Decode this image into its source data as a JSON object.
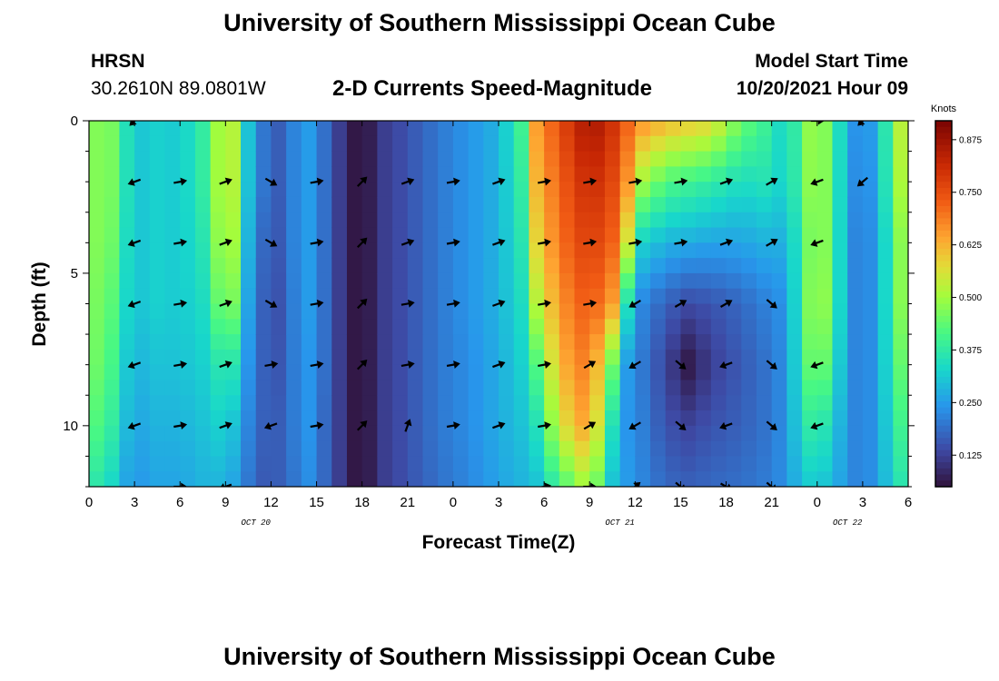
{
  "header": {
    "title": "University of Southern Mississippi Ocean Cube",
    "station": "HRSN",
    "coordinates": "30.2610N  89.0801W",
    "subtitle": "2-D Currents Speed-Magnitude",
    "model_start_label": "Model Start Time",
    "model_start_value": "10/20/2021 Hour 09"
  },
  "footer": {
    "title": "University of Southern Mississippi Ocean Cube"
  },
  "chart_data": {
    "type": "heatmap",
    "title": "2-D Currents Speed-Magnitude",
    "xlabel": "Forecast Time(Z)",
    "ylabel": "Depth (ft)",
    "x_tick_labels": [
      "0",
      "3",
      "6",
      "9",
      "12",
      "15",
      "18",
      "21",
      "0",
      "3",
      "6",
      "9",
      "12",
      "15",
      "18",
      "21",
      "0",
      "3",
      "6"
    ],
    "x_tick_hours": [
      0,
      3,
      6,
      9,
      12,
      15,
      18,
      21,
      24,
      27,
      30,
      33,
      36,
      39,
      42,
      45,
      48,
      51,
      54
    ],
    "x_range_hours": [
      0,
      54
    ],
    "date_labels": [
      {
        "text": "OCT 20",
        "hour": 11
      },
      {
        "text": "OCT 21",
        "hour": 35
      },
      {
        "text": "OCT 22",
        "hour": 50
      }
    ],
    "y_ticks": [
      "0",
      "5",
      "10"
    ],
    "y_tick_values": [
      0,
      5,
      10
    ],
    "y_range": [
      0,
      12
    ],
    "colorbar": {
      "label": "Knots",
      "ticks": [
        "0.875",
        "0.750",
        "0.625",
        "0.500",
        "0.375",
        "0.250",
        "0.125"
      ],
      "tick_values": [
        0.875,
        0.75,
        0.625,
        0.5,
        0.375,
        0.25,
        0.125
      ],
      "range": [
        0.05,
        0.92
      ]
    },
    "speed_control_points": [
      {
        "hour": 0,
        "depths": [
          0,
          2,
          4,
          6,
          8,
          10,
          12
        ],
        "speeds": [
          0.42,
          0.42,
          0.42,
          0.42,
          0.42,
          0.4,
          0.35
        ]
      },
      {
        "hour": 1,
        "depths": [
          0,
          2,
          4,
          6,
          8,
          10,
          12
        ],
        "speeds": [
          0.52,
          0.52,
          0.52,
          0.5,
          0.48,
          0.44,
          0.38
        ]
      },
      {
        "hour": 2,
        "depths": [
          0,
          2,
          4,
          6,
          8,
          10,
          12
        ],
        "speeds": [
          0.4,
          0.4,
          0.38,
          0.36,
          0.34,
          0.32,
          0.28
        ]
      },
      {
        "hour": 3,
        "depths": [
          0,
          2,
          4,
          6,
          8,
          10,
          12
        ],
        "speeds": [
          0.3,
          0.3,
          0.3,
          0.3,
          0.28,
          0.26,
          0.24
        ]
      },
      {
        "hour": 4.5,
        "depths": [
          0,
          2,
          4,
          6,
          8,
          10,
          12
        ],
        "speeds": [
          0.32,
          0.32,
          0.32,
          0.32,
          0.3,
          0.28,
          0.26
        ]
      },
      {
        "hour": 6,
        "depths": [
          0,
          2,
          4,
          6,
          8,
          10,
          12
        ],
        "speeds": [
          0.31,
          0.31,
          0.31,
          0.31,
          0.3,
          0.28,
          0.26
        ]
      },
      {
        "hour": 7.5,
        "depths": [
          0,
          2,
          4,
          6,
          8,
          10,
          12
        ],
        "speeds": [
          0.38,
          0.38,
          0.36,
          0.34,
          0.32,
          0.3,
          0.28
        ]
      },
      {
        "hour": 8.5,
        "depths": [
          0,
          2,
          4,
          6,
          8,
          10,
          12
        ],
        "speeds": [
          0.5,
          0.5,
          0.48,
          0.44,
          0.36,
          0.32,
          0.28
        ]
      },
      {
        "hour": 9.5,
        "depths": [
          0,
          2,
          4,
          6,
          8,
          10,
          12
        ],
        "speeds": [
          0.52,
          0.52,
          0.5,
          0.46,
          0.36,
          0.3,
          0.26
        ]
      },
      {
        "hour": 10.5,
        "depths": [
          0,
          2,
          4,
          6,
          8,
          10,
          12
        ],
        "speeds": [
          0.3,
          0.3,
          0.28,
          0.26,
          0.24,
          0.22,
          0.2
        ]
      },
      {
        "hour": 11.5,
        "depths": [
          0,
          2,
          4,
          6,
          8,
          10,
          12
        ],
        "speeds": [
          0.2,
          0.2,
          0.18,
          0.17,
          0.17,
          0.17,
          0.16
        ]
      },
      {
        "hour": 12,
        "depths": [
          0,
          2,
          4,
          6,
          8,
          10,
          12
        ],
        "speeds": [
          0.13,
          0.13,
          0.12,
          0.11,
          0.12,
          0.14,
          0.15
        ]
      },
      {
        "hour": 13,
        "depths": [
          0,
          2,
          4,
          6,
          8,
          10,
          12
        ],
        "speeds": [
          0.2,
          0.2,
          0.2,
          0.19,
          0.19,
          0.19,
          0.18
        ]
      },
      {
        "hour": 14.5,
        "depths": [
          0,
          2,
          4,
          6,
          8,
          10,
          12
        ],
        "speeds": [
          0.25,
          0.25,
          0.25,
          0.25,
          0.24,
          0.24,
          0.23
        ]
      },
      {
        "hour": 15.5,
        "depths": [
          0,
          2,
          4,
          6,
          8,
          10,
          12
        ],
        "speeds": [
          0.19,
          0.19,
          0.19,
          0.19,
          0.19,
          0.18,
          0.18
        ]
      },
      {
        "hour": 16.5,
        "depths": [
          0,
          2,
          4,
          6,
          8,
          10,
          12
        ],
        "speeds": [
          0.12,
          0.12,
          0.12,
          0.12,
          0.12,
          0.12,
          0.12
        ]
      },
      {
        "hour": 17.5,
        "depths": [
          0,
          2,
          4,
          6,
          8,
          10,
          12
        ],
        "speeds": [
          0.06,
          0.06,
          0.06,
          0.06,
          0.06,
          0.06,
          0.06
        ]
      },
      {
        "hour": 18.5,
        "depths": [
          0,
          2,
          4,
          6,
          8,
          10,
          12
        ],
        "speeds": [
          0.07,
          0.07,
          0.07,
          0.07,
          0.07,
          0.07,
          0.07
        ]
      },
      {
        "hour": 19.5,
        "depths": [
          0,
          2,
          4,
          6,
          8,
          10,
          12
        ],
        "speeds": [
          0.12,
          0.12,
          0.12,
          0.12,
          0.12,
          0.12,
          0.12
        ]
      },
      {
        "hour": 21,
        "depths": [
          0,
          2,
          4,
          6,
          8,
          10,
          12
        ],
        "speeds": [
          0.15,
          0.15,
          0.15,
          0.15,
          0.15,
          0.15,
          0.15
        ]
      },
      {
        "hour": 23,
        "depths": [
          0,
          2,
          4,
          6,
          8,
          10,
          12
        ],
        "speeds": [
          0.2,
          0.2,
          0.2,
          0.2,
          0.2,
          0.2,
          0.19
        ]
      },
      {
        "hour": 25,
        "depths": [
          0,
          2,
          4,
          6,
          8,
          10,
          12
        ],
        "speeds": [
          0.24,
          0.24,
          0.24,
          0.24,
          0.23,
          0.23,
          0.22
        ]
      },
      {
        "hour": 27,
        "depths": [
          0,
          2,
          4,
          6,
          8,
          10,
          12
        ],
        "speeds": [
          0.28,
          0.28,
          0.28,
          0.28,
          0.27,
          0.27,
          0.26
        ]
      },
      {
        "hour": 28.5,
        "depths": [
          0,
          2,
          4,
          6,
          8,
          10,
          12
        ],
        "speeds": [
          0.4,
          0.38,
          0.36,
          0.34,
          0.32,
          0.3,
          0.28
        ]
      },
      {
        "hour": 29.5,
        "depths": [
          0,
          2,
          4,
          6,
          8,
          10,
          12
        ],
        "speeds": [
          0.65,
          0.62,
          0.58,
          0.52,
          0.42,
          0.35,
          0.3
        ]
      },
      {
        "hour": 31,
        "depths": [
          0,
          2,
          4,
          6,
          8,
          10,
          12
        ],
        "speeds": [
          0.75,
          0.72,
          0.7,
          0.66,
          0.62,
          0.55,
          0.4
        ]
      },
      {
        "hour": 33,
        "depths": [
          0,
          2,
          4,
          6,
          8,
          10,
          12
        ],
        "speeds": [
          0.87,
          0.82,
          0.78,
          0.74,
          0.7,
          0.66,
          0.52
        ]
      },
      {
        "hour": 34.5,
        "depths": [
          0,
          2,
          4,
          6,
          8,
          10,
          12
        ],
        "speeds": [
          0.8,
          0.76,
          0.72,
          0.65,
          0.45,
          0.35,
          0.3
        ]
      },
      {
        "hour": 35.5,
        "depths": [
          0,
          2,
          4,
          6,
          8,
          10,
          12
        ],
        "speeds": [
          0.72,
          0.66,
          0.55,
          0.35,
          0.25,
          0.24,
          0.25
        ]
      },
      {
        "hour": 36.5,
        "depths": [
          0,
          2,
          4,
          6,
          8,
          10,
          12
        ],
        "speeds": [
          0.66,
          0.5,
          0.32,
          0.22,
          0.2,
          0.21,
          0.22
        ]
      },
      {
        "hour": 38,
        "depths": [
          0,
          2,
          4,
          6,
          8,
          10,
          12
        ],
        "speeds": [
          0.62,
          0.42,
          0.28,
          0.17,
          0.13,
          0.15,
          0.18
        ]
      },
      {
        "hour": 39.5,
        "depths": [
          0,
          2,
          4,
          6,
          8,
          10,
          12
        ],
        "speeds": [
          0.6,
          0.4,
          0.27,
          0.14,
          0.06,
          0.13,
          0.17
        ]
      },
      {
        "hour": 41,
        "depths": [
          0,
          2,
          4,
          6,
          8,
          10,
          12
        ],
        "speeds": [
          0.58,
          0.38,
          0.26,
          0.15,
          0.12,
          0.15,
          0.18
        ]
      },
      {
        "hour": 43,
        "depths": [
          0,
          2,
          4,
          6,
          8,
          10,
          12
        ],
        "speeds": [
          0.45,
          0.34,
          0.26,
          0.18,
          0.16,
          0.17,
          0.19
        ]
      },
      {
        "hour": 45,
        "depths": [
          0,
          2,
          4,
          6,
          8,
          10,
          12
        ],
        "speeds": [
          0.38,
          0.36,
          0.28,
          0.22,
          0.2,
          0.2,
          0.21
        ]
      },
      {
        "hour": 46,
        "depths": [
          0,
          2,
          4,
          6,
          8,
          10,
          12
        ],
        "speeds": [
          0.3,
          0.3,
          0.27,
          0.24,
          0.24,
          0.24,
          0.24
        ]
      },
      {
        "hour": 47,
        "depths": [
          0,
          2,
          4,
          6,
          8,
          10,
          12
        ],
        "speeds": [
          0.45,
          0.44,
          0.4,
          0.4,
          0.38,
          0.35,
          0.3
        ]
      },
      {
        "hour": 48,
        "depths": [
          0,
          2,
          4,
          6,
          8,
          10,
          12
        ],
        "speeds": [
          0.52,
          0.52,
          0.52,
          0.54,
          0.5,
          0.4,
          0.32
        ]
      },
      {
        "hour": 49,
        "depths": [
          0,
          2,
          4,
          6,
          8,
          10,
          12
        ],
        "speeds": [
          0.42,
          0.42,
          0.42,
          0.42,
          0.38,
          0.32,
          0.28
        ]
      },
      {
        "hour": 50,
        "depths": [
          0,
          2,
          4,
          6,
          8,
          10,
          12
        ],
        "speeds": [
          0.26,
          0.25,
          0.24,
          0.24,
          0.24,
          0.24,
          0.24
        ]
      },
      {
        "hour": 51,
        "depths": [
          0,
          2,
          4,
          6,
          8,
          10,
          12
        ],
        "speeds": [
          0.22,
          0.21,
          0.2,
          0.2,
          0.2,
          0.2,
          0.2
        ]
      },
      {
        "hour": 52,
        "depths": [
          0,
          2,
          4,
          6,
          8,
          10,
          12
        ],
        "speeds": [
          0.28,
          0.27,
          0.26,
          0.26,
          0.26,
          0.26,
          0.26
        ]
      },
      {
        "hour": 53,
        "depths": [
          0,
          2,
          4,
          6,
          8,
          10,
          12
        ],
        "speeds": [
          0.45,
          0.44,
          0.4,
          0.4,
          0.38,
          0.35,
          0.32
        ]
      },
      {
        "hour": 54,
        "depths": [
          0,
          2,
          4,
          6,
          8,
          10,
          12
        ],
        "speeds": [
          0.6,
          0.58,
          0.55,
          0.55,
          0.5,
          0.45,
          0.4
        ]
      }
    ],
    "vector_hours": [
      3,
      6,
      9,
      12,
      15,
      18,
      21,
      24,
      27,
      30,
      33,
      36,
      39,
      42,
      45,
      48,
      51
    ],
    "vector_depths": [
      0,
      2,
      4,
      6,
      8,
      10,
      12
    ],
    "vector_directions_deg": [
      [
        225,
        180,
        0,
        0,
        0,
        0,
        0,
        0,
        0,
        0,
        0,
        0,
        0,
        0,
        0,
        0,
        225
      ],
      [
        200,
        10,
        20,
        330,
        10,
        45,
        20,
        10,
        20,
        10,
        10,
        10,
        10,
        20,
        30,
        200,
        220
      ],
      [
        200,
        10,
        20,
        330,
        10,
        45,
        20,
        10,
        20,
        10,
        10,
        10,
        10,
        20,
        30,
        200,
        220
      ],
      [
        200,
        10,
        20,
        330,
        10,
        45,
        10,
        10,
        20,
        10,
        10,
        210,
        30,
        30,
        320,
        200,
        220
      ],
      [
        200,
        10,
        20,
        10,
        10,
        45,
        10,
        10,
        20,
        10,
        30,
        210,
        320,
        200,
        320,
        200,
        220
      ],
      [
        200,
        10,
        20,
        200,
        10,
        45,
        70,
        10,
        20,
        10,
        30,
        210,
        320,
        200,
        320,
        200,
        220
      ],
      [
        0,
        0,
        200,
        0,
        0,
        0,
        0,
        0,
        0,
        10,
        0,
        40,
        320,
        330,
        320,
        0,
        0
      ]
    ],
    "vector_present": [
      [
        1,
        0,
        0,
        0,
        0,
        0,
        0,
        0,
        0,
        0,
        0,
        0,
        0,
        0,
        0,
        1,
        1
      ],
      [
        1,
        1,
        1,
        1,
        1,
        1,
        1,
        1,
        1,
        1,
        1,
        1,
        1,
        1,
        1,
        1,
        1
      ],
      [
        1,
        1,
        1,
        1,
        1,
        1,
        1,
        1,
        1,
        1,
        1,
        1,
        1,
        1,
        1,
        1,
        0
      ],
      [
        1,
        1,
        1,
        1,
        1,
        1,
        1,
        1,
        1,
        1,
        1,
        1,
        1,
        1,
        1,
        0,
        0
      ],
      [
        1,
        1,
        1,
        1,
        1,
        1,
        1,
        1,
        1,
        1,
        1,
        1,
        1,
        1,
        1,
        1,
        0
      ],
      [
        1,
        1,
        1,
        1,
        1,
        1,
        1,
        1,
        1,
        1,
        1,
        1,
        1,
        1,
        1,
        1,
        0
      ],
      [
        0,
        1,
        1,
        0,
        0,
        0,
        0,
        0,
        0,
        1,
        1,
        1,
        1,
        1,
        1,
        0,
        0
      ]
    ]
  }
}
